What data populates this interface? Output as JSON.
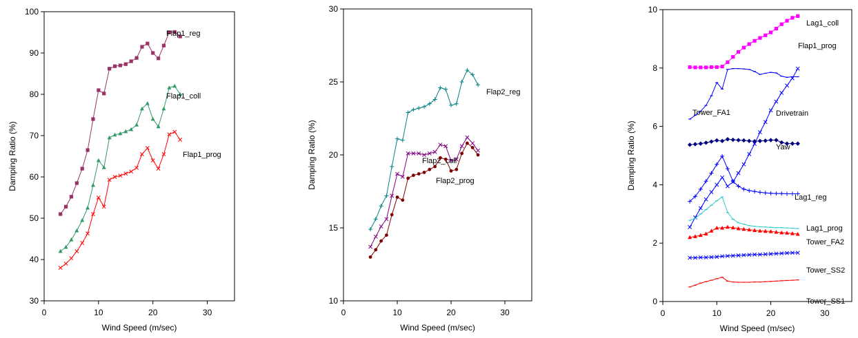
{
  "chart_data": [
    {
      "type": "line",
      "xlabel": "Wind Speed (m/sec)",
      "ylabel": "Damping Ratio (%)",
      "xlim": [
        0,
        35
      ],
      "ylim": [
        30,
        100
      ],
      "xticks": [
        0,
        10,
        20,
        30
      ],
      "yticks": [
        30,
        40,
        50,
        60,
        70,
        80,
        90,
        100
      ],
      "grid": false,
      "series": [
        {
          "name": "Flap1_reg",
          "color": "#993366",
          "marker": "square",
          "x": [
            3,
            4,
            5,
            6,
            7,
            8,
            9,
            10,
            11,
            12,
            13,
            14,
            15,
            16,
            17,
            18,
            19,
            20,
            21,
            22,
            23,
            24,
            25
          ],
          "y": [
            51,
            52.8,
            55.2,
            58.5,
            62,
            66.5,
            74,
            81,
            80.2,
            86.2,
            86.8,
            87,
            87.3,
            88,
            88.8,
            91.5,
            92.3,
            90,
            88.7,
            91.8,
            95,
            95.1,
            94
          ]
        },
        {
          "name": "Flap1_coll",
          "color": "#339966",
          "marker": "triangle",
          "x": [
            3,
            4,
            5,
            6,
            7,
            8,
            9,
            10,
            11,
            12,
            13,
            14,
            15,
            16,
            17,
            18,
            19,
            20,
            21,
            22,
            23,
            24,
            25
          ],
          "y": [
            42,
            43,
            44.8,
            47,
            49.5,
            52.5,
            58,
            64,
            62.3,
            69.5,
            70.2,
            70.5,
            71,
            71.5,
            72.6,
            76.5,
            77.8,
            74,
            72.2,
            76.5,
            81.6,
            82,
            80
          ]
        },
        {
          "name": "Flap1_prog",
          "color": "#ff0000",
          "marker": "x",
          "x": [
            3,
            4,
            5,
            6,
            7,
            8,
            9,
            10,
            11,
            12,
            13,
            14,
            15,
            16,
            17,
            18,
            19,
            20,
            21,
            22,
            23,
            24,
            25
          ],
          "y": [
            38,
            39,
            40.3,
            42,
            44,
            46.3,
            51,
            55,
            52.8,
            59.3,
            60,
            60.3,
            60.8,
            61.3,
            62.2,
            65.5,
            67,
            64,
            62,
            65.5,
            70.3,
            70.9,
            69
          ]
        }
      ]
    },
    {
      "type": "line",
      "xlabel": "Wind Speed (m/sec)",
      "ylabel": "Damping Ratio (%)",
      "xlim": [
        0,
        35
      ],
      "ylim": [
        10,
        30
      ],
      "xticks": [
        0,
        10,
        20,
        30
      ],
      "yticks": [
        10,
        15,
        20,
        25,
        30
      ],
      "grid": false,
      "series": [
        {
          "name": "Flap2_reg",
          "color": "#008080",
          "marker": "plus",
          "x": [
            5,
            6,
            7,
            8,
            9,
            10,
            11,
            12,
            13,
            14,
            15,
            16,
            17,
            18,
            19,
            20,
            21,
            22,
            23,
            24,
            25
          ],
          "y": [
            14.9,
            15.6,
            16.5,
            17.2,
            19.2,
            21.1,
            21,
            22.9,
            23.1,
            23.2,
            23.3,
            23.5,
            23.8,
            24.6,
            24.5,
            23.4,
            23.5,
            25,
            25.8,
            25.5,
            24.8
          ]
        },
        {
          "name": "Flap2_coll",
          "color": "#800080",
          "marker": "x",
          "x": [
            5,
            6,
            7,
            8,
            9,
            10,
            11,
            12,
            13,
            14,
            15,
            16,
            17,
            18,
            19,
            20,
            21,
            22,
            23,
            24,
            25
          ],
          "y": [
            13.7,
            14.4,
            15.1,
            15.6,
            17.2,
            18.7,
            18.5,
            20.1,
            20.1,
            20.1,
            20,
            20.1,
            20.2,
            20.7,
            20.6,
            19.6,
            19.7,
            20.6,
            21.2,
            20.8,
            20.3
          ]
        },
        {
          "name": "Flap2_prog",
          "color": "#800000",
          "marker": "dot",
          "x": [
            5,
            6,
            7,
            8,
            9,
            10,
            11,
            12,
            13,
            14,
            15,
            16,
            17,
            18,
            19,
            20,
            21,
            22,
            23,
            24,
            25
          ],
          "y": [
            13,
            13.5,
            14.1,
            14.5,
            15.9,
            17.1,
            16.9,
            18.4,
            18.6,
            18.7,
            18.8,
            19,
            19.2,
            19.8,
            19.7,
            18.9,
            19,
            20.1,
            20.8,
            20.5,
            20
          ]
        }
      ]
    },
    {
      "type": "line",
      "xlabel": "Wind Speed (m/sec)",
      "ylabel": "Damping Ratio (%)",
      "xlim": [
        0,
        35
      ],
      "ylim": [
        0,
        10
      ],
      "xticks": [
        0,
        10,
        20,
        30
      ],
      "yticks": [
        0,
        2,
        4,
        6,
        8,
        10
      ],
      "grid": false,
      "series": [
        {
          "name": "Lag1_coll",
          "color": "#ff00ff",
          "marker": "square",
          "x": [
            5,
            6,
            7,
            8,
            9,
            10,
            11,
            12,
            13,
            14,
            15,
            16,
            17,
            18,
            19,
            20,
            21,
            22,
            23,
            24,
            25
          ],
          "y": [
            8.03,
            8.02,
            8.02,
            8.02,
            8.03,
            8.03,
            8.05,
            8.2,
            8.38,
            8.55,
            8.7,
            8.82,
            8.93,
            9.03,
            9.12,
            9.22,
            9.35,
            9.5,
            9.62,
            9.72,
            9.78
          ]
        },
        {
          "name": "Tower_FA1",
          "color": "#0000ff",
          "marker": "dash",
          "x": [
            5,
            6,
            7,
            8,
            9,
            10,
            11,
            12,
            13,
            14,
            15,
            16,
            17,
            18,
            19,
            20,
            21,
            22,
            23,
            24,
            25
          ],
          "y": [
            6.25,
            6.38,
            6.52,
            6.72,
            7.05,
            7.5,
            7.28,
            7.95,
            7.98,
            7.98,
            7.97,
            7.95,
            7.88,
            7.78,
            7.82,
            7.85,
            7.83,
            7.72,
            7.68,
            7.7,
            7.7
          ]
        },
        {
          "name": "Drivetrain",
          "color": "#0000ff",
          "marker": "x",
          "x": [
            5,
            6,
            7,
            8,
            9,
            10,
            11,
            12,
            13,
            14,
            15,
            16,
            17,
            18,
            19,
            20,
            21,
            22,
            23,
            24,
            25
          ],
          "y": [
            2.55,
            2.88,
            3.2,
            3.5,
            3.75,
            4.0,
            4.25,
            3.95,
            4.1,
            4.4,
            4.7,
            5.05,
            5.4,
            5.8,
            6.15,
            6.55,
            6.85,
            7.15,
            7.4,
            7.65,
            7.98
          ]
        },
        {
          "name": "Yaw",
          "color": "#000080",
          "marker": "diamond",
          "x": [
            5,
            6,
            7,
            8,
            9,
            10,
            11,
            12,
            13,
            14,
            15,
            16,
            17,
            18,
            19,
            20,
            21,
            22,
            23,
            24,
            25
          ],
          "y": [
            5.37,
            5.39,
            5.41,
            5.44,
            5.48,
            5.52,
            5.5,
            5.56,
            5.54,
            5.53,
            5.52,
            5.5,
            5.49,
            5.5,
            5.51,
            5.53,
            5.53,
            5.45,
            5.41,
            5.41,
            5.41
          ]
        },
        {
          "name": "Lag1_reg",
          "color": "#0000ff",
          "marker": "plus",
          "x": [
            5,
            6,
            7,
            8,
            9,
            10,
            11,
            12,
            13,
            14,
            15,
            16,
            17,
            18,
            19,
            20,
            21,
            22,
            23,
            24,
            25
          ],
          "y": [
            3.43,
            3.6,
            3.85,
            4.12,
            4.4,
            4.7,
            4.98,
            4.55,
            4.12,
            3.95,
            3.85,
            3.8,
            3.77,
            3.74,
            3.72,
            3.71,
            3.7,
            3.7,
            3.69,
            3.69,
            3.69
          ]
        },
        {
          "name": "Lag1_prog",
          "color": "#33cccc",
          "marker": "dash",
          "x": [
            5,
            6,
            7,
            8,
            9,
            10,
            11,
            12,
            13,
            14,
            15,
            16,
            17,
            18,
            19,
            20,
            21,
            22,
            23,
            24,
            25
          ],
          "y": [
            2.78,
            2.85,
            3.0,
            3.15,
            3.3,
            3.45,
            3.58,
            3.05,
            2.82,
            2.7,
            2.65,
            2.6,
            2.58,
            2.56,
            2.55,
            2.54,
            2.53,
            2.53,
            2.52,
            2.51,
            2.5
          ]
        },
        {
          "name": "Tower_FA2",
          "color": "#ff0000",
          "marker": "triangle",
          "x": [
            5,
            6,
            7,
            8,
            9,
            10,
            11,
            12,
            13,
            14,
            15,
            16,
            17,
            18,
            19,
            20,
            21,
            22,
            23,
            24,
            25
          ],
          "y": [
            2.2,
            2.23,
            2.27,
            2.32,
            2.42,
            2.52,
            2.52,
            2.55,
            2.53,
            2.5,
            2.48,
            2.46,
            2.44,
            2.42,
            2.41,
            2.4,
            2.38,
            2.36,
            2.35,
            2.33,
            2.31
          ]
        },
        {
          "name": "Tower_SS2",
          "color": "#0000ff",
          "marker": "x",
          "x": [
            5,
            6,
            7,
            8,
            9,
            10,
            11,
            12,
            13,
            14,
            15,
            16,
            17,
            18,
            19,
            20,
            21,
            22,
            23,
            24,
            25
          ],
          "y": [
            1.5,
            1.5,
            1.51,
            1.51,
            1.52,
            1.53,
            1.55,
            1.56,
            1.57,
            1.58,
            1.59,
            1.6,
            1.61,
            1.61,
            1.62,
            1.63,
            1.64,
            1.65,
            1.66,
            1.67,
            1.67
          ]
        },
        {
          "name": "Tower_SS1",
          "color": "#ff0000",
          "marker": "dash",
          "x": [
            5,
            6,
            7,
            8,
            9,
            10,
            11,
            12,
            13,
            14,
            15,
            16,
            17,
            18,
            19,
            20,
            21,
            22,
            23,
            24,
            25
          ],
          "y": [
            0.5,
            0.56,
            0.63,
            0.68,
            0.73,
            0.78,
            0.83,
            0.7,
            0.67,
            0.66,
            0.66,
            0.66,
            0.67,
            0.67,
            0.68,
            0.69,
            0.7,
            0.71,
            0.72,
            0.73,
            0.74
          ]
        }
      ],
      "extra_labels": [
        "Flap1_prog"
      ]
    }
  ]
}
